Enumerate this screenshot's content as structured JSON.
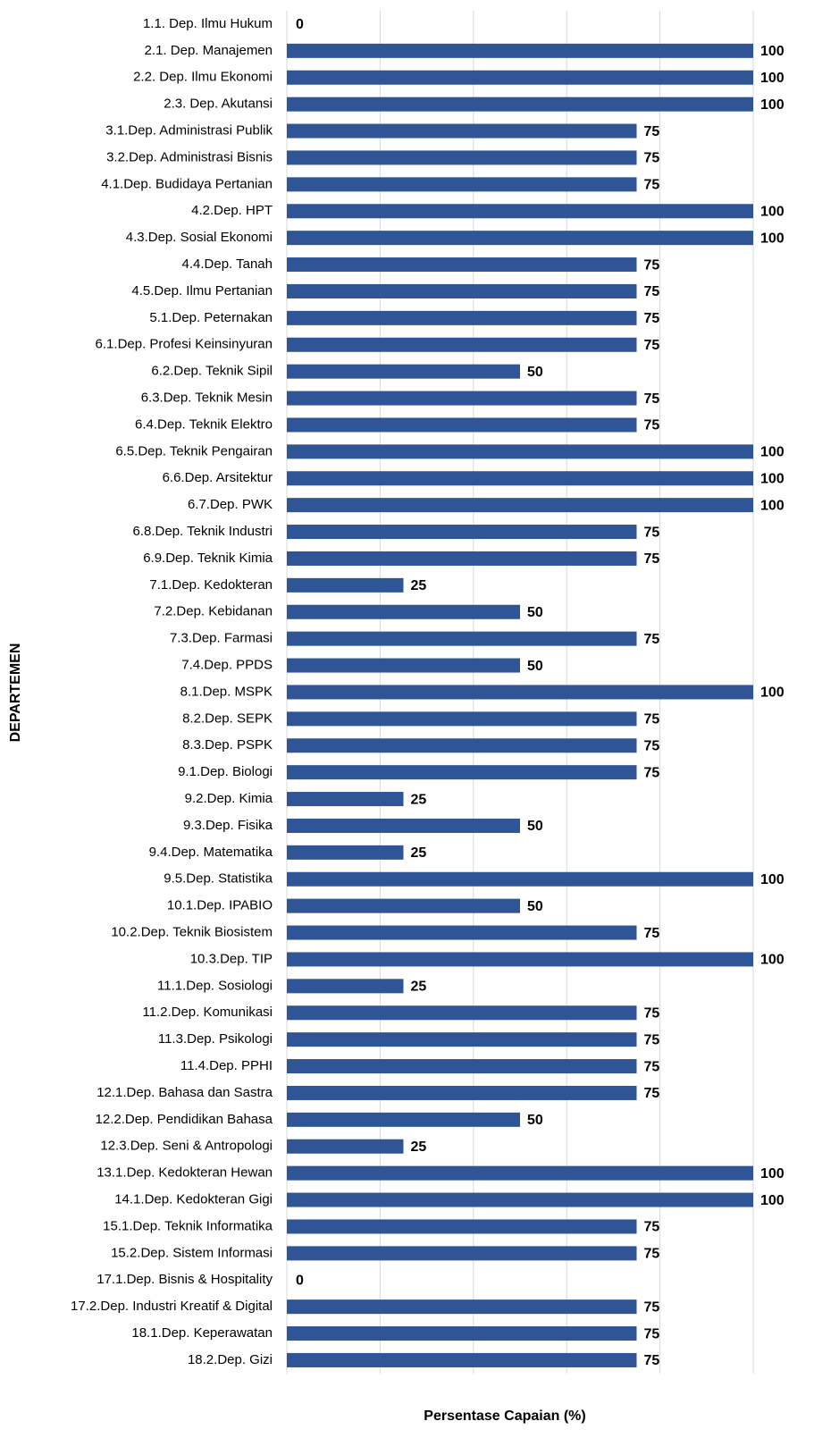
{
  "chart_data": {
    "type": "barh",
    "x_label": "Persentase Capaian (%)",
    "y_label": "DEPARTEMEN",
    "color": "#2f5597",
    "grid": true,
    "tick_labels": false,
    "xlim": [
      0,
      100
    ],
    "xticks": [
      0,
      20,
      40,
      60,
      80,
      100
    ],
    "categories": [
      "1.1. Dep. Ilmu Hukum",
      "2.1. Dep. Manajemen",
      "2.2. Dep. Ilmu Ekonomi",
      "2.3. Dep. Akutansi",
      "3.1.Dep. Administrasi Publik",
      "3.2.Dep. Administrasi Bisnis",
      "4.1.Dep. Budidaya Pertanian",
      "4.2.Dep. HPT",
      "4.3.Dep. Sosial Ekonomi",
      "4.4.Dep. Tanah",
      "4.5.Dep. Ilmu Pertanian",
      "5.1.Dep. Peternakan",
      "6.1.Dep. Profesi Keinsinyuran",
      "6.2.Dep. Teknik Sipil",
      "6.3.Dep. Teknik Mesin",
      "6.4.Dep. Teknik Elektro",
      "6.5.Dep. Teknik Pengairan",
      "6.6.Dep. Arsitektur",
      "6.7.Dep. PWK",
      "6.8.Dep. Teknik Industri",
      "6.9.Dep. Teknik Kimia",
      "7.1.Dep. Kedokteran",
      "7.2.Dep. Kebidanan",
      "7.3.Dep. Farmasi",
      "7.4.Dep. PPDS",
      "8.1.Dep. MSPK",
      "8.2.Dep. SEPK",
      "8.3.Dep. PSPK",
      "9.1.Dep. Biologi",
      "9.2.Dep. Kimia",
      "9.3.Dep. Fisika",
      "9.4.Dep. Matematika",
      "9.5.Dep. Statistika",
      "10.1.Dep. IPABIO",
      "10.2.Dep. Teknik Biosistem",
      "10.3.Dep. TIP",
      "11.1.Dep. Sosiologi",
      "11.2.Dep. Komunikasi",
      "11.3.Dep. Psikologi",
      "11.4.Dep. PPHI",
      "12.1.Dep. Bahasa dan Sastra",
      "12.2.Dep. Pendidikan Bahasa",
      "12.3.Dep. Seni & Antropologi",
      "13.1.Dep. Kedokteran Hewan",
      "14.1.Dep. Kedokteran Gigi",
      "15.1.Dep. Teknik Informatika",
      "15.2.Dep. Sistem Informasi",
      "17.1.Dep. Bisnis & Hospitality",
      "17.2.Dep. Industri Kreatif & Digital",
      "18.1.Dep. Keperawatan",
      "18.2.Dep. Gizi"
    ],
    "values": [
      0,
      100,
      100,
      100,
      75,
      75,
      75,
      100,
      100,
      75,
      75,
      75,
      75,
      50,
      75,
      75,
      100,
      100,
      100,
      75,
      75,
      25,
      50,
      75,
      50,
      100,
      75,
      75,
      75,
      25,
      50,
      25,
      100,
      50,
      75,
      100,
      25,
      75,
      75,
      75,
      75,
      50,
      25,
      100,
      100,
      75,
      75,
      0,
      75,
      75,
      75
    ]
  }
}
